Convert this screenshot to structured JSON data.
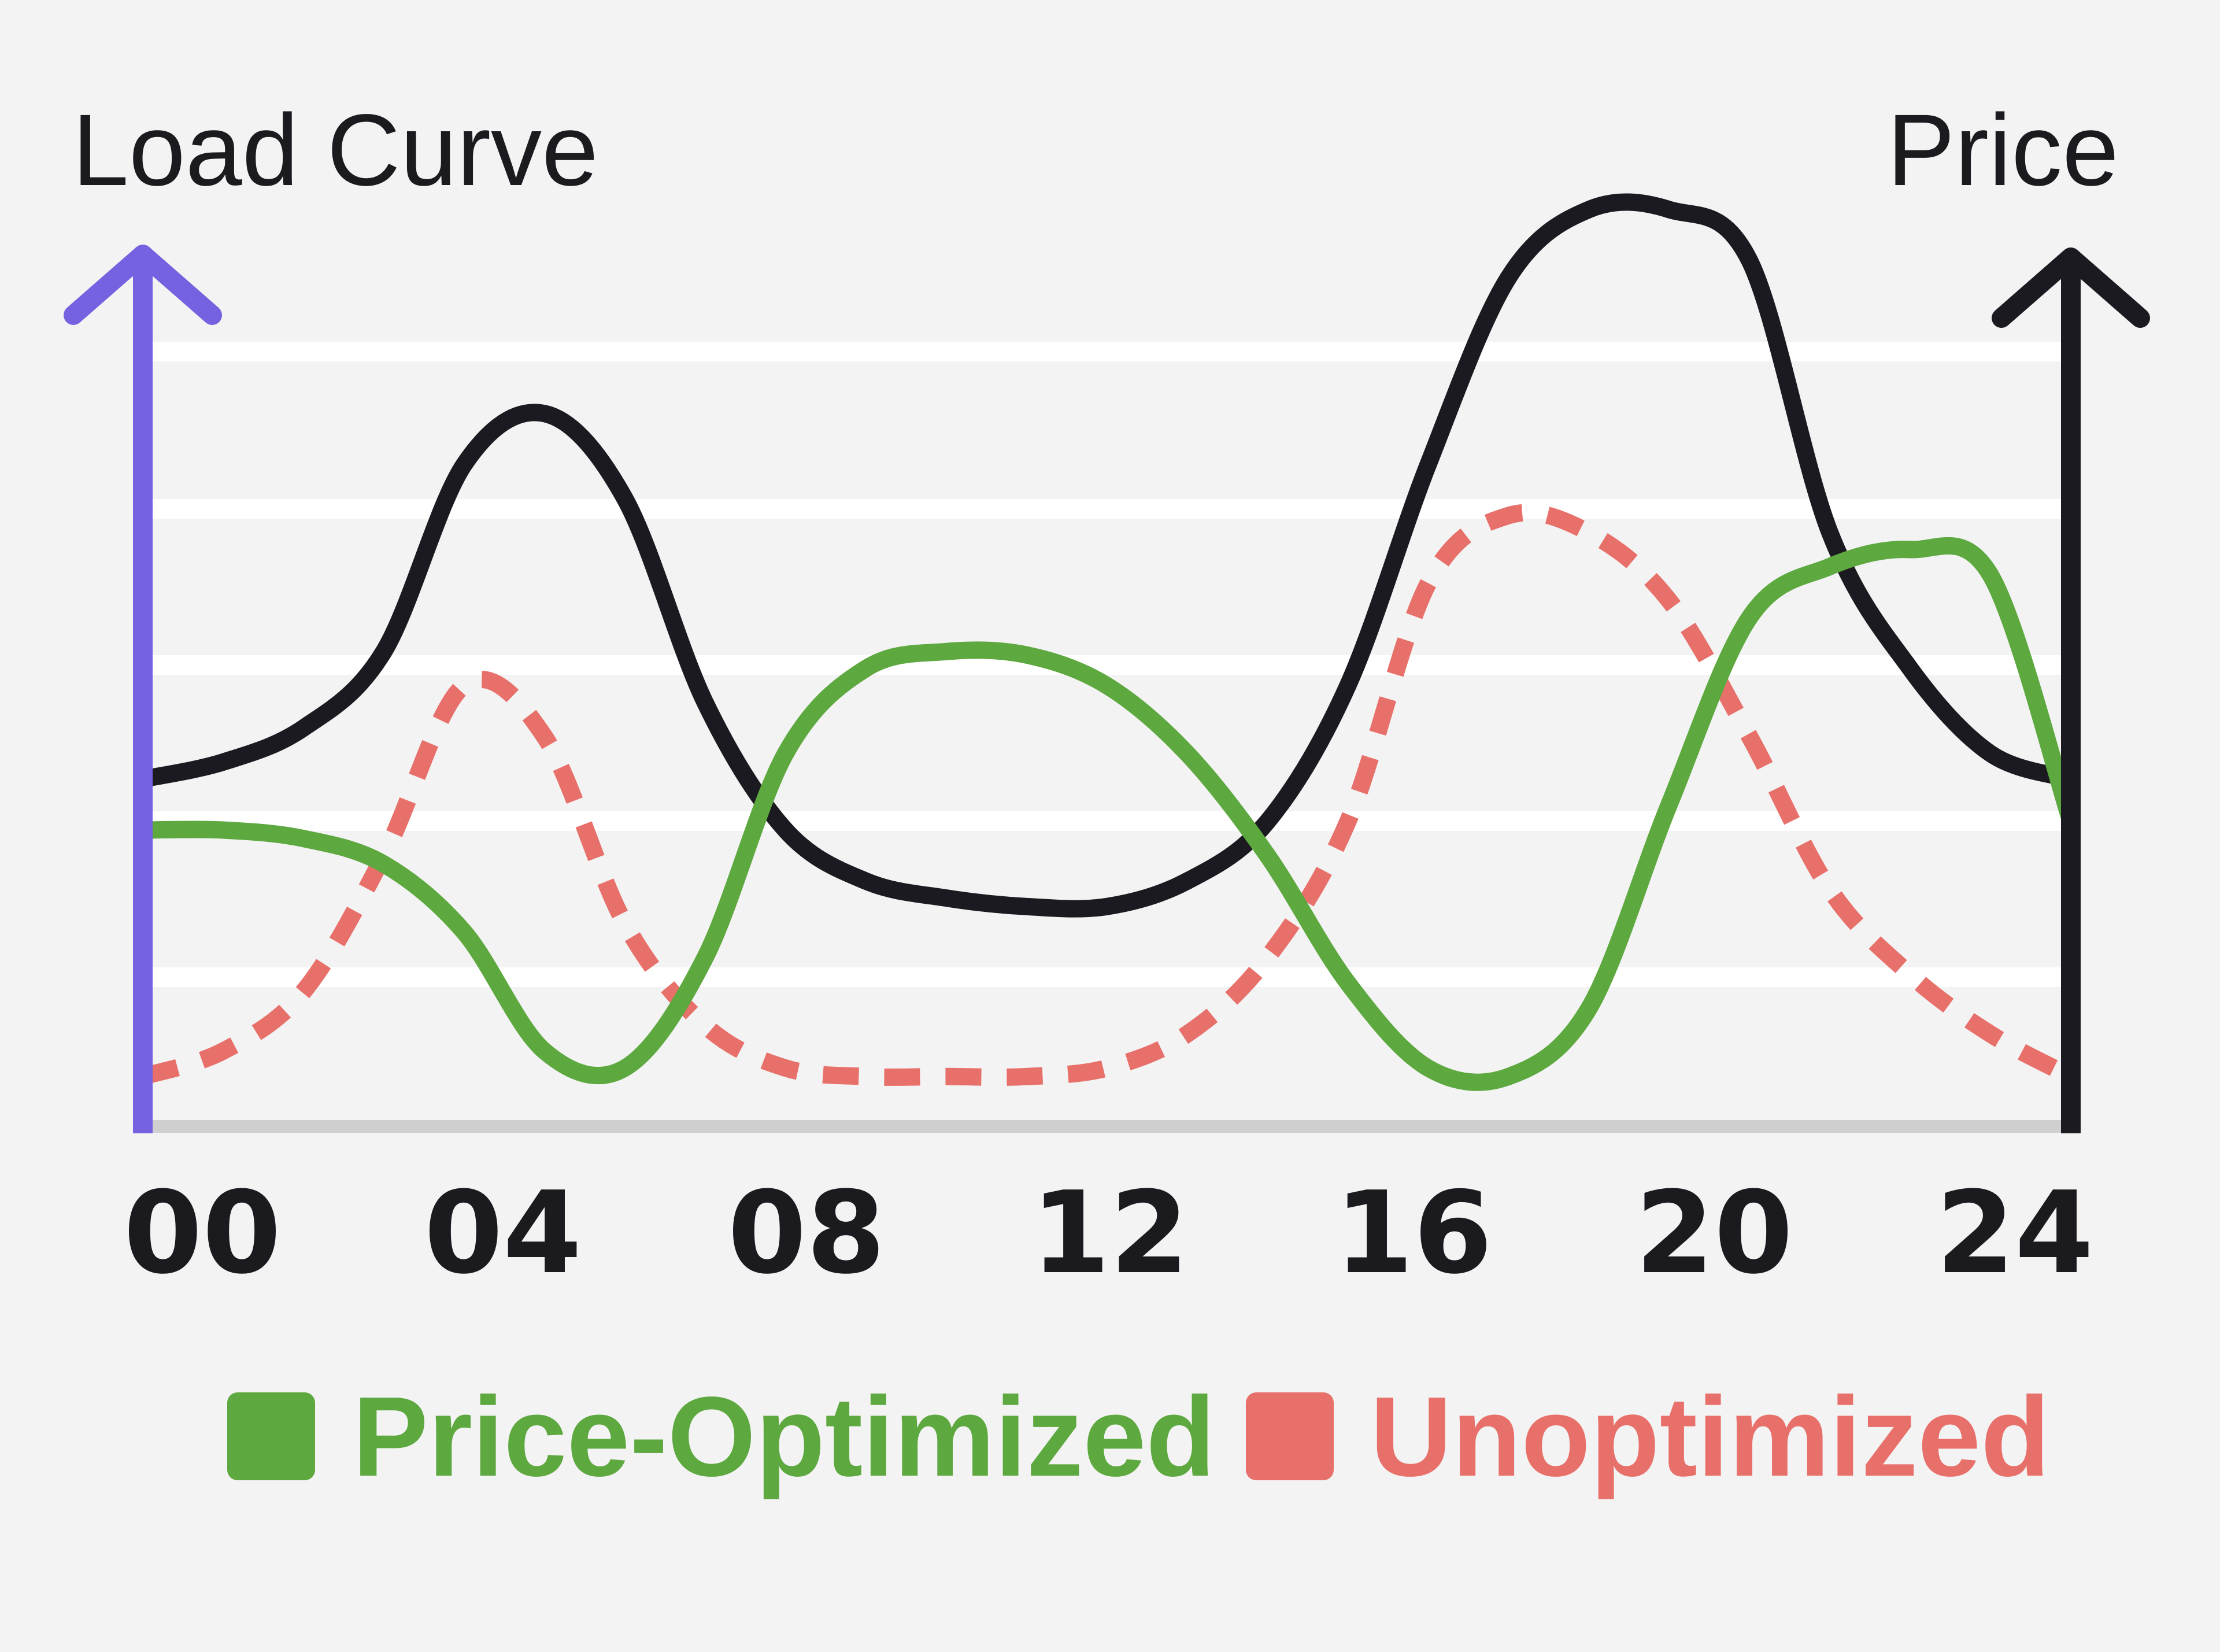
{
  "chart_data": {
    "type": "line",
    "left_axis_label": "Load Curve",
    "right_axis_label": "Price",
    "x_ticks": [
      "00",
      "04",
      "08",
      "12",
      "16",
      "20",
      "24"
    ],
    "xlim": [
      0,
      24
    ],
    "left_ylim": [
      0,
      5
    ],
    "right_ylim": [
      0,
      5
    ],
    "grid": true,
    "legend_position": "bottom",
    "series": [
      {
        "key": "price",
        "axis": "right",
        "color": "#1b1a20",
        "style": "solid",
        "x": [
          0,
          1,
          2,
          3,
          4,
          5,
          6,
          7,
          8,
          9,
          10,
          11,
          12,
          13,
          14,
          15,
          16,
          17,
          18,
          19,
          20,
          21,
          22,
          23,
          24
        ],
        "y": [
          2.05,
          2.15,
          2.35,
          2.8,
          3.9,
          4.2,
          3.7,
          2.5,
          1.75,
          1.45,
          1.35,
          1.3,
          1.3,
          1.45,
          1.8,
          2.6,
          3.9,
          5.0,
          5.4,
          5.4,
          5.1,
          3.5,
          2.7,
          2.2,
          2.05
        ]
      },
      {
        "key": "price_optimized",
        "name": "Price-Optimized",
        "axis": "left",
        "color": "#5da83f",
        "style": "solid",
        "x": [
          0,
          1,
          2,
          3,
          4,
          5,
          6,
          7,
          8,
          9,
          10,
          11,
          12,
          13,
          14,
          15,
          16,
          17,
          18,
          19,
          20,
          21,
          22,
          23,
          24
        ],
        "y": [
          1.75,
          1.75,
          1.7,
          1.55,
          1.15,
          0.45,
          0.35,
          1.0,
          2.2,
          2.7,
          2.8,
          2.78,
          2.6,
          2.2,
          1.6,
          0.85,
          0.35,
          0.3,
          0.7,
          1.9,
          3.0,
          3.3,
          3.4,
          3.25,
          1.8
        ]
      },
      {
        "key": "unoptimized",
        "name": "Unoptimized",
        "axis": "left",
        "color": "#e8706a",
        "style": "dashed",
        "x": [
          0,
          1,
          2,
          3,
          4,
          5,
          6,
          7,
          8,
          9,
          10,
          11,
          12,
          13,
          14,
          15,
          16,
          17,
          18,
          19,
          20,
          21,
          22,
          23,
          24
        ],
        "y": [
          0.3,
          0.45,
          0.8,
          1.6,
          2.6,
          2.3,
          1.2,
          0.6,
          0.35,
          0.3,
          0.3,
          0.3,
          0.35,
          0.55,
          1.0,
          1.8,
          3.2,
          3.6,
          3.5,
          3.1,
          2.3,
          1.4,
          0.9,
          0.55,
          0.3
        ]
      }
    ]
  },
  "legend": [
    {
      "label": "Price-Optimized",
      "color": "#5da83f"
    },
    {
      "label": "Unoptimized",
      "color": "#e8706a"
    }
  ],
  "colors": {
    "background": "#f3f3f3",
    "grid": "#ffffff",
    "baseline": "#cfcfcf",
    "left_axis": "#7462e0",
    "right_axis": "#1b1a20"
  }
}
